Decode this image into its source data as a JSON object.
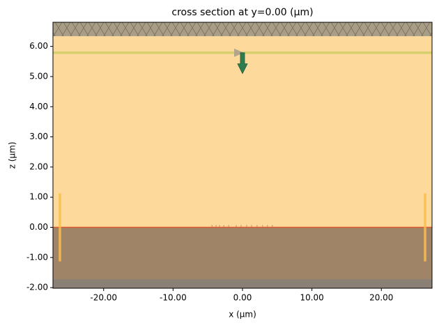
{
  "chart_data": {
    "type": "cross_section",
    "title": "cross section at y=0.00 (µm)",
    "xlabel": "x (µm)",
    "ylabel": "z (µm)",
    "xlim": [
      -27.3,
      27.3
    ],
    "ylim": [
      -2.02,
      6.8
    ],
    "xticks": [
      {
        "value": -20,
        "label": "-20.00"
      },
      {
        "value": -10,
        "label": "-10.00"
      },
      {
        "value": 0,
        "label": "0.00"
      },
      {
        "value": 10,
        "label": "10.00"
      },
      {
        "value": 20,
        "label": "20.00"
      }
    ],
    "yticks": [
      {
        "value": -2,
        "label": "-2.00"
      },
      {
        "value": -1,
        "label": "-1.00"
      },
      {
        "value": 0,
        "label": "0.00"
      },
      {
        "value": 1,
        "label": "1.00"
      },
      {
        "value": 2,
        "label": "2.00"
      },
      {
        "value": 3,
        "label": "3.00"
      },
      {
        "value": 4,
        "label": "4.00"
      },
      {
        "value": 5,
        "label": "5.00"
      },
      {
        "value": 6,
        "label": "6.00"
      }
    ],
    "boxes": [
      {
        "z": [
          0,
          6.34
        ],
        "color": "#fdda9b",
        "hatch": false
      },
      {
        "z": [
          -1.72,
          0
        ],
        "color": "#9f8467",
        "hatch": false
      },
      {
        "z": [
          -2.02,
          -1.72
        ],
        "color": "#8b8076",
        "hatch": false
      },
      {
        "z": [
          6.34,
          6.8
        ],
        "color": "#a99d85",
        "hatch": true
      }
    ],
    "interface": {
      "z": 0,
      "color": "#e0582e"
    },
    "grating": {
      "x": [
        -4.4,
        -3.8,
        -3.3,
        -2.7,
        -2.0,
        -0.9,
        -0.2,
        0.6,
        1.3,
        2.1,
        2.9,
        3.6,
        4.3
      ],
      "height": 0.08,
      "color": "#c9906a"
    },
    "monitors": {
      "color": "#fbbd4c",
      "items": [
        {
          "x": -26.3,
          "z": [
            -1.13,
            1.13
          ]
        },
        {
          "x": 26.3,
          "z": [
            -1.13,
            1.13
          ]
        }
      ]
    },
    "source": {
      "z": 5.79,
      "color": "#d6d06c",
      "arrow_x": 0,
      "arrow_z": [
        5.79,
        5.1
      ],
      "arrow_color": "#2e7d4f",
      "marker_color": "#b3a68b"
    }
  }
}
